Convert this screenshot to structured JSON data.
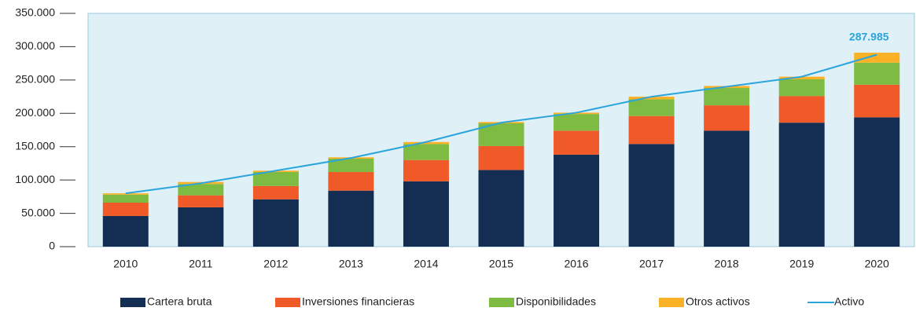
{
  "chart_data": {
    "type": "bar",
    "categories": [
      "2010",
      "2011",
      "2012",
      "2013",
      "2014",
      "2015",
      "2016",
      "2017",
      "2018",
      "2019",
      "2020"
    ],
    "series": [
      {
        "name": "Cartera bruta",
        "color": "#142d52",
        "values": [
          46000,
          59000,
          71000,
          84000,
          98000,
          115000,
          138000,
          154000,
          174000,
          186000,
          194000
        ]
      },
      {
        "name": "Inversiones financieras",
        "color": "#f05a28",
        "values": [
          20000,
          18000,
          20000,
          28000,
          32000,
          36000,
          36000,
          42000,
          38000,
          40000,
          49000
        ]
      },
      {
        "name": "Disponibilidades",
        "color": "#7dbb42",
        "values": [
          12000,
          17000,
          21000,
          20000,
          24000,
          34000,
          25000,
          25000,
          26000,
          25000,
          33000
        ]
      },
      {
        "name": "Otros activos",
        "color": "#fbb125",
        "values": [
          2000,
          3000,
          2000,
          2000,
          3000,
          2000,
          2000,
          4000,
          3000,
          4000,
          15000
        ]
      },
      {
        "name": "Activo",
        "type": "line",
        "color": "#2aa5dc",
        "values": [
          80000,
          95000,
          114000,
          133000,
          157000,
          186000,
          201000,
          225000,
          240000,
          255000,
          287985
        ],
        "value_labels": [
          null,
          null,
          null,
          null,
          null,
          null,
          null,
          null,
          null,
          null,
          "287.985"
        ]
      }
    ],
    "stacked": true,
    "ylim": [
      0,
      350000
    ],
    "yticks": [
      0,
      {
        "value": 50000,
        "label": "50.000"
      },
      {
        "value": 100000,
        "label": "100.000"
      },
      {
        "value": 150000,
        "label": "150.000"
      },
      {
        "value": 200000,
        "label": "200.000"
      },
      {
        "value": 250000,
        "label": "250.000"
      },
      {
        "value": 300000,
        "label": "300.000"
      },
      {
        "value": 350000,
        "label": "350.000"
      }
    ],
    "legend": "bottom"
  }
}
